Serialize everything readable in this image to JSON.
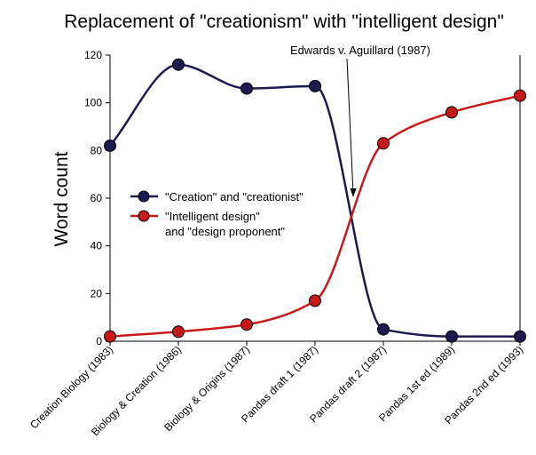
{
  "chart_data": {
    "type": "line",
    "title": "Replacement of \"creationism\" with \"intelligent design\"",
    "xlabel": "",
    "ylabel": "Word count",
    "ylim": [
      0,
      120
    ],
    "yticks": [
      0,
      20,
      40,
      60,
      80,
      100,
      120
    ],
    "grid": false,
    "legend_position": "center-left",
    "categories": [
      "Creation Biology (1983)",
      "Biology & Creation (1986)",
      "Biology & Origins (1987)",
      "Pandas draft 1 (1987)",
      "Pandas draft 2 (1987)",
      "Pandas 1st ed (1989)",
      "Pandas 2nd ed (1993)"
    ],
    "series": [
      {
        "name": "\"Creation\" and \"creationist\"",
        "color": "#1c1a4e",
        "values": [
          82,
          116,
          106,
          107,
          5,
          2,
          2
        ]
      },
      {
        "name_lines": [
          "\"Intelligent design\"",
          "and \"design proponent\""
        ],
        "color": "#c8191a",
        "values": [
          2,
          4,
          7,
          17,
          83,
          96,
          103
        ]
      }
    ],
    "annotation": {
      "text": "Edwards v. Aguillard (1987)",
      "position_between": [
        3,
        4
      ]
    }
  }
}
